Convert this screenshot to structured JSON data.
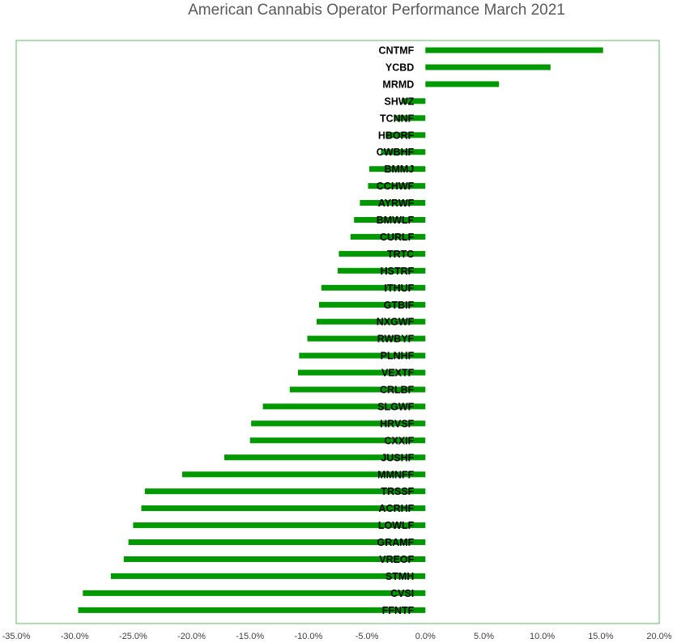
{
  "chart_data": {
    "type": "bar",
    "orientation": "horizontal",
    "title": "American Cannabis Operator Performance March 2021",
    "xlabel": "",
    "ylabel": "",
    "xlim": [
      -35,
      20
    ],
    "x_ticks": [
      -35,
      -30,
      -25,
      -20,
      -15,
      -10,
      -5,
      0,
      5,
      10,
      15,
      20
    ],
    "x_tick_labels": [
      "-35.0%",
      "-30.0%",
      "-25.0%",
      "-20.0%",
      "-15.0%",
      "-10.0%",
      "-5.0%",
      "0.0%",
      "5.0%",
      "10.0%",
      "15.0%",
      "20.0%"
    ],
    "grid": false,
    "legend": "none",
    "bar_color": "#009900",
    "border_color": "#5cbf5c",
    "categories": [
      "CNTMF",
      "YCBD",
      "MRMD",
      "SHWZ",
      "TCNNF",
      "HBORF",
      "CWBHF",
      "BMMJ",
      "CCHWF",
      "AYRWF",
      "BMWLF",
      "CURLF",
      "TRTC",
      "HSTRF",
      "ITHUF",
      "GTBIF",
      "NXGWF",
      "RWBYF",
      "PLNHF",
      "VEXTF",
      "CRLBF",
      "SLGWF",
      "HRVSF",
      "CXXIF",
      "JUSHF",
      "MMNFF",
      "TRSSF",
      "ACRHF",
      "LOWLF",
      "GRAMF",
      "VREOF",
      "STMH",
      "CVSI",
      "FFNTF"
    ],
    "values": [
      15.2,
      10.7,
      6.3,
      -2.0,
      -2.6,
      -3.4,
      -3.8,
      -4.8,
      -4.9,
      -5.6,
      -6.1,
      -6.4,
      -7.4,
      -7.5,
      -8.9,
      -9.1,
      -9.3,
      -10.1,
      -10.8,
      -10.9,
      -11.6,
      -13.9,
      -14.9,
      -15.0,
      -17.2,
      -20.8,
      -24.0,
      -24.3,
      -25.0,
      -25.4,
      -25.8,
      -26.9,
      -29.3,
      -29.7
    ]
  }
}
